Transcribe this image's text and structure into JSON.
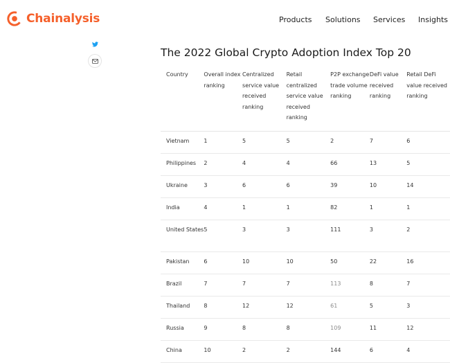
{
  "header": {
    "logo_text": "Chainalysis",
    "brand_color": "#f5602b",
    "nav": [
      "Products",
      "Solutions",
      "Services",
      "Insights"
    ]
  },
  "share": {
    "twitter_icon": "twitter-icon",
    "email_icon": "email-icon"
  },
  "article": {
    "title": "The 2022 Global Crypto Adoption Index Top 20",
    "table": {
      "headers": [
        "Country",
        "Overall index ranking",
        "Centralized service value received ranking",
        "Retail centralized service value received ranking",
        "P2P exchange trade volume ranking",
        "DeFi value received ranking",
        "Retail DeFi value received ranking"
      ],
      "rows": [
        [
          "Vietnam",
          "1",
          "5",
          "5",
          "2",
          "7",
          "6"
        ],
        [
          "Philippines",
          "2",
          "4",
          "4",
          "66",
          "13",
          "5"
        ],
        [
          "Ukraine",
          "3",
          "6",
          "6",
          "39",
          "10",
          "14"
        ],
        [
          "India",
          "4",
          "1",
          "1",
          "82",
          "1",
          "1"
        ],
        [
          "United States",
          "5",
          "3",
          "3",
          "111",
          "3",
          "2"
        ],
        [
          "Pakistan",
          "6",
          "10",
          "10",
          "50",
          "22",
          "16"
        ],
        [
          "Brazil",
          "7",
          "7",
          "7",
          "113",
          "8",
          "7"
        ],
        [
          "Thailand",
          "8",
          "12",
          "12",
          "61",
          "5",
          "3"
        ],
        [
          "Russia",
          "9",
          "8",
          "8",
          "109",
          "11",
          "12"
        ],
        [
          "China",
          "10",
          "2",
          "2",
          "144",
          "6",
          "4"
        ]
      ]
    }
  }
}
